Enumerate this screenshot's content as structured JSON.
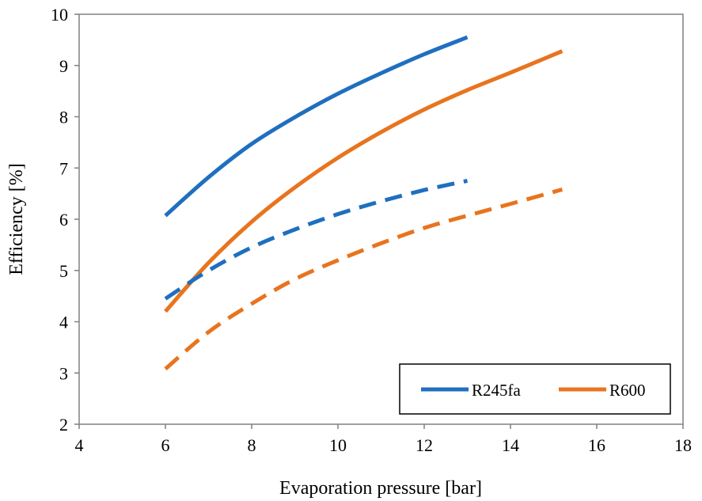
{
  "chart_data": {
    "type": "line",
    "title": "",
    "xlabel": "Evaporation pressure [bar]",
    "ylabel": "Efficiency [%]",
    "xlim": [
      4,
      18
    ],
    "ylim": [
      2,
      10
    ],
    "xticks": [
      4,
      6,
      8,
      10,
      12,
      14,
      16,
      18
    ],
    "yticks": [
      2,
      3,
      4,
      5,
      6,
      7,
      8,
      9,
      10
    ],
    "grid": false,
    "legend_position": "bottom-right",
    "legend": [
      "R245fa",
      "R600"
    ],
    "colors": {
      "R245fa": "#1f6fbf",
      "R600": "#e8741e"
    },
    "series": [
      {
        "name": "R245fa",
        "style": "solid",
        "color": "#1f6fbf",
        "x": [
          6,
          7,
          8,
          9,
          10,
          11,
          12,
          13
        ],
        "y": [
          6.07,
          6.82,
          7.47,
          7.99,
          8.45,
          8.85,
          9.22,
          9.55
        ]
      },
      {
        "name": "R600",
        "style": "solid",
        "color": "#e8741e",
        "x": [
          6,
          7,
          8,
          9,
          10,
          11,
          12,
          13,
          14,
          15.2
        ],
        "y": [
          4.2,
          5.15,
          5.95,
          6.62,
          7.2,
          7.7,
          8.14,
          8.52,
          8.86,
          9.28
        ]
      },
      {
        "name": "",
        "style": "dashed",
        "color": "#1f6fbf",
        "x": [
          6,
          7,
          8,
          9,
          10,
          11,
          12,
          13
        ],
        "y": [
          4.45,
          5.0,
          5.45,
          5.8,
          6.1,
          6.35,
          6.57,
          6.75
        ]
      },
      {
        "name": "",
        "style": "dashed",
        "color": "#e8741e",
        "x": [
          6,
          7,
          8,
          9,
          10,
          11,
          12,
          13,
          14,
          15.2
        ],
        "y": [
          3.08,
          3.8,
          4.35,
          4.83,
          5.2,
          5.53,
          5.83,
          6.07,
          6.3,
          6.58
        ]
      }
    ]
  }
}
